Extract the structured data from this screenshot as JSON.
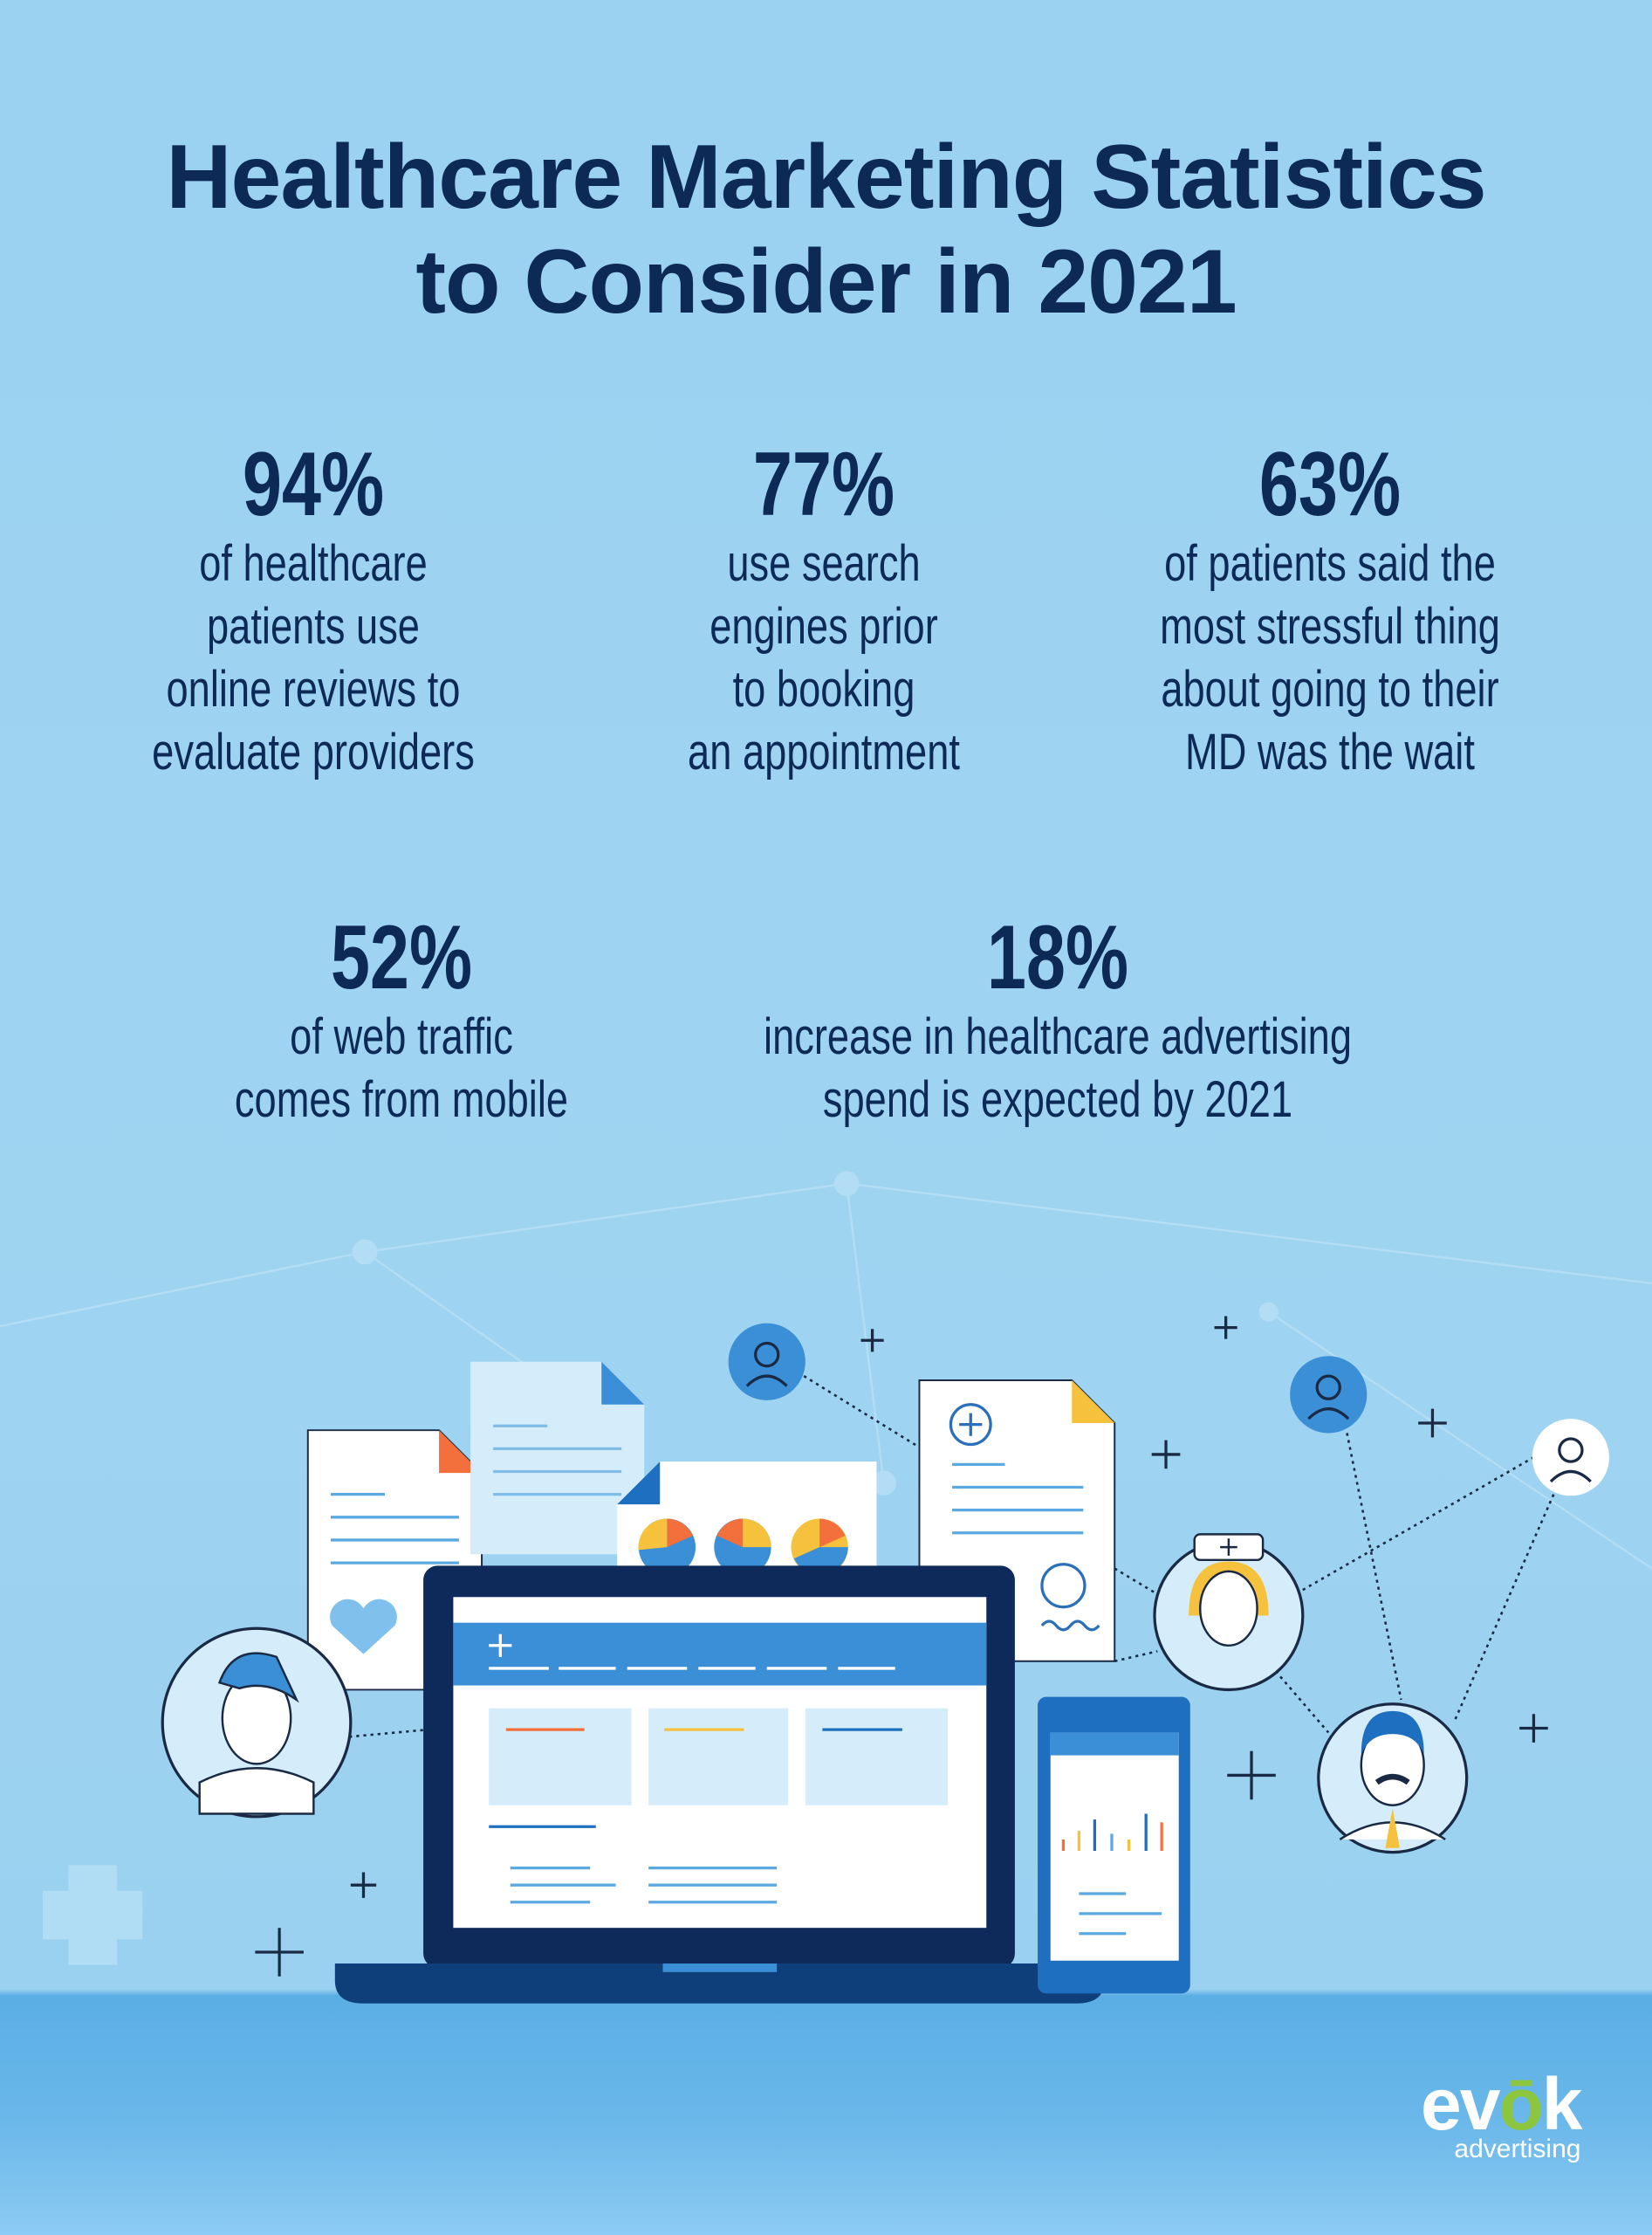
{
  "header": {
    "title_line1": "Healthcare Marketing Statistics",
    "title_line2": "to Consider in 2021"
  },
  "stats": [
    {
      "value": "94%",
      "lines": [
        "of healthcare",
        "patients use",
        "online reviews to",
        "evaluate providers"
      ]
    },
    {
      "value": "77%",
      "lines": [
        "use search",
        "engines prior",
        "to booking",
        "an appointment"
      ]
    },
    {
      "value": "63%",
      "lines": [
        "of patients said the",
        "most stressful thing",
        "about going to their",
        "MD was the wait"
      ]
    },
    {
      "value": "52%",
      "lines": [
        "of web traffic",
        "comes from mobile"
      ]
    },
    {
      "value": "18%",
      "lines": [
        "increase in healthcare advertising",
        "spend is expected by 2021"
      ]
    }
  ],
  "logo": {
    "brand_pre": "ev",
    "brand_o": "ō",
    "brand_post": "k",
    "tagline": "advertising"
  },
  "colors": {
    "text": "#0d2a57",
    "background": "#9bd2f1",
    "accent_green": "#8cc63f",
    "accent_blue": "#3a8fd6"
  }
}
